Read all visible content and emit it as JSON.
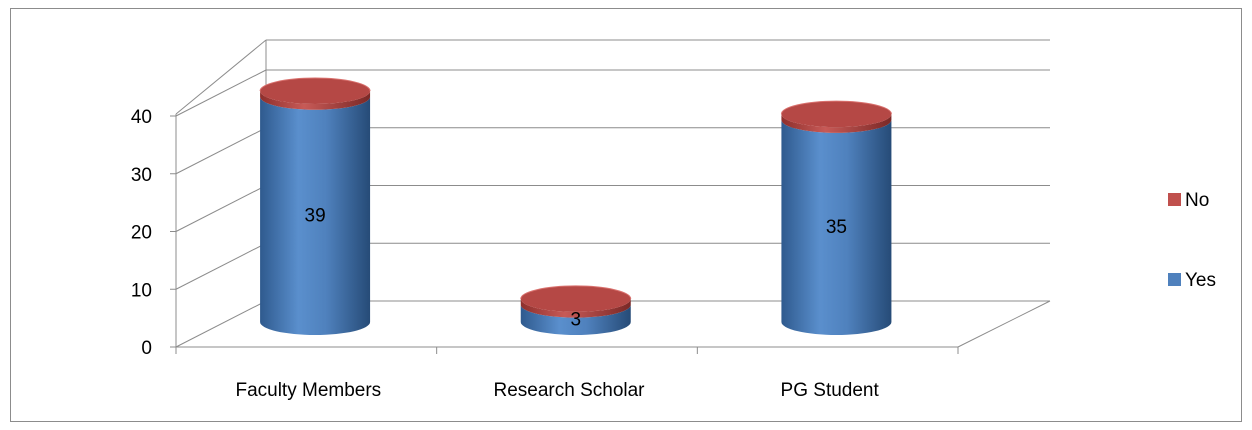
{
  "chart_data": {
    "type": "bar",
    "style": "3d-cylinder-stacked",
    "categories": [
      "Faculty Members",
      "Research Scholar",
      "PG Student"
    ],
    "series": [
      {
        "name": "Yes",
        "values": [
          39,
          3,
          35
        ],
        "color": "#4f81bd"
      },
      {
        "name": "No",
        "values": [
          1,
          1,
          1
        ],
        "color": "#c0504d"
      }
    ],
    "data_labels": [
      "39",
      "3",
      "35"
    ],
    "ylim": [
      0,
      40
    ],
    "yticks": [
      "0",
      "10",
      "20",
      "30",
      "40"
    ],
    "grid": true,
    "legend": {
      "position": "right",
      "items": [
        "No",
        "Yes"
      ]
    }
  }
}
